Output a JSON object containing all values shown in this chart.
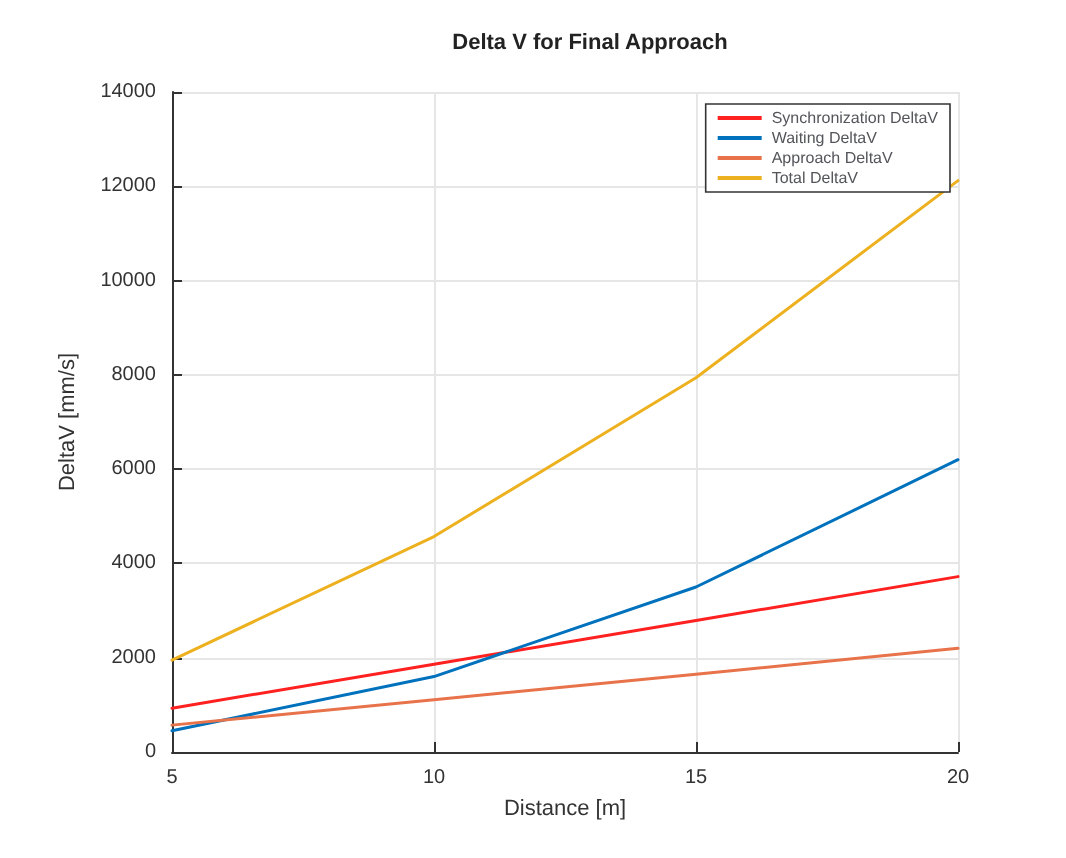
{
  "chart_data": {
    "type": "line",
    "title": "Delta V for Final Approach",
    "xlabel": "Distance [m]",
    "ylabel": "DeltaV [mm/s]",
    "x": [
      5,
      10,
      15,
      20
    ],
    "series": [
      {
        "name": "Synchronization DeltaV",
        "color": "#ff2020",
        "values": [
          930,
          1860,
          2790,
          3720
        ]
      },
      {
        "name": "Waiting DeltaV",
        "color": "#0072bd",
        "values": [
          450,
          1600,
          3500,
          6200
        ]
      },
      {
        "name": "Approach DeltaV",
        "color": "#e8734a",
        "values": [
          570,
          1110,
          1650,
          2200
        ]
      },
      {
        "name": "Total DeltaV",
        "color": "#edb120",
        "values": [
          1950,
          4570,
          7940,
          12120
        ]
      }
    ],
    "xlim": [
      5,
      20
    ],
    "xticks": [
      5,
      10,
      15,
      20
    ],
    "ylim": [
      0,
      14000
    ],
    "yticks": [
      0,
      2000,
      4000,
      6000,
      8000,
      10000,
      12000,
      14000
    ],
    "grid": true,
    "legend": "top right",
    "marker": "none",
    "line_style": "solid"
  }
}
